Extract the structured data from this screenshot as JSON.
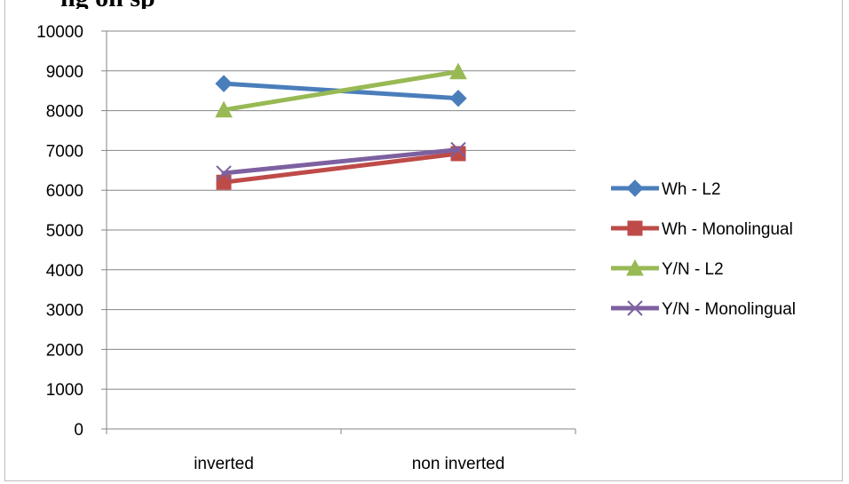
{
  "header": {
    "clipped_title": "ng on sp"
  },
  "chart_data": {
    "type": "line",
    "categories": [
      "inverted",
      "non inverted"
    ],
    "ylim": [
      0,
      10000
    ],
    "yticks": [
      0,
      1000,
      2000,
      3000,
      4000,
      5000,
      6000,
      7000,
      8000,
      9000,
      10000
    ],
    "grid": true,
    "legend_position": "right",
    "series": [
      {
        "name": "Wh - L2",
        "values": [
          8680,
          8310
        ],
        "color": "#4a7ebb",
        "marker": "diamond"
      },
      {
        "name": "Wh - Monolingual",
        "values": [
          6200,
          6920
        ],
        "color": "#be4b48",
        "marker": "square"
      },
      {
        "name": "Y/N - L2",
        "values": [
          8020,
          8980
        ],
        "color": "#98b954",
        "marker": "triangle"
      },
      {
        "name": "Y/N - Monolingual",
        "values": [
          6430,
          7020
        ],
        "color": "#7d60a0",
        "marker": "x"
      }
    ]
  }
}
